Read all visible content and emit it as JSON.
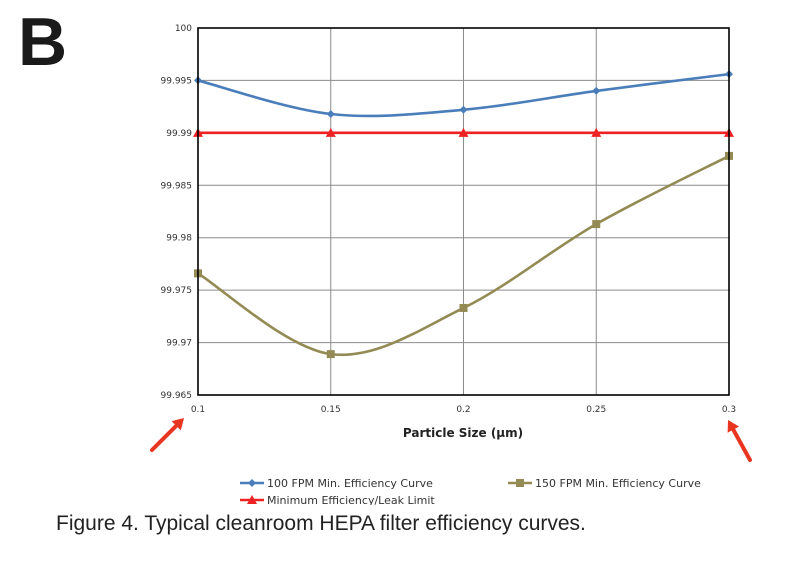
{
  "panel_label": "B",
  "caption": "Figure 4. Typical cleanroom HEPA filter efficiency curves.",
  "chart_data": {
    "type": "line",
    "title": "",
    "xlabel": "Particle Size (µm)",
    "ylabel": "",
    "x": [
      0.1,
      0.15,
      0.2,
      0.25,
      0.3
    ],
    "x_tick_labels": [
      "0.1",
      "0.15",
      "0.2",
      "0.25",
      "0.3"
    ],
    "y_tick_labels": [
      "99.965",
      "99.97",
      "99.975",
      "99.98",
      "99.985",
      "99.99",
      "99.995",
      "100"
    ],
    "xlim": [
      0.1,
      0.3
    ],
    "ylim": [
      99.965,
      100
    ],
    "grid": true,
    "legend_position": "bottom",
    "series": [
      {
        "name": "100 FPM Min. Efficiency Curve",
        "color": "#4a7ebb",
        "marker": "diamond",
        "values": [
          99.995,
          99.9918,
          99.9922,
          99.994,
          99.9956
        ]
      },
      {
        "name": "150 FPM Min. Efficiency Curve",
        "color": "#948a54",
        "marker": "square",
        "values": [
          99.9766,
          99.9689,
          99.9733,
          99.9813,
          99.9878
        ]
      },
      {
        "name": "Minimum Efficiency/Leak Limit",
        "color": "#ee2222",
        "marker": "triangle",
        "values": [
          99.99,
          99.99,
          99.99,
          99.99,
          99.99
        ]
      }
    ]
  },
  "annotations": {
    "arrow_color": "#e8351f",
    "arrows": [
      {
        "name": "arrow-at-0.1",
        "points_to_x": 0.1
      },
      {
        "name": "arrow-at-0.3",
        "points_to_x": 0.3
      }
    ]
  }
}
